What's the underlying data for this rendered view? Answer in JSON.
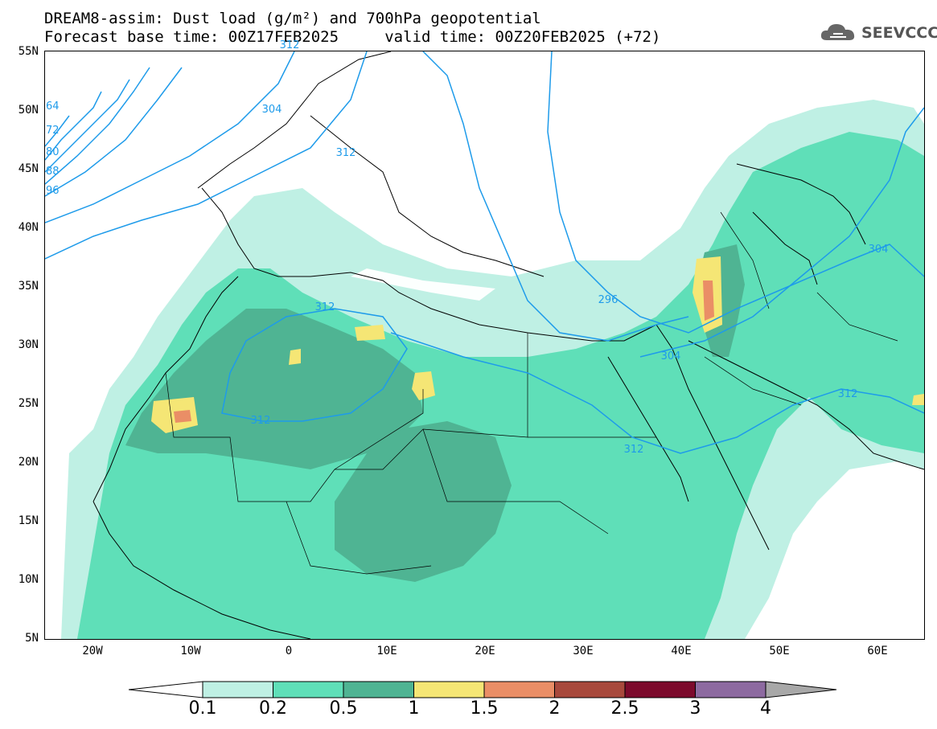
{
  "title": {
    "line1": "DREAM8-assim: Dust load (g/m²) and 700hPa geopotential",
    "line2": "Forecast base time: 00Z17FEB2025     valid time: 00Z20FEB2025 (+72)"
  },
  "logo": {
    "text": "SEEVCCC",
    "icon": "cloud-icon"
  },
  "axes": {
    "lat_labels": [
      "55N",
      "50N",
      "45N",
      "40N",
      "35N",
      "30N",
      "25N",
      "20N",
      "15N",
      "10N",
      "5N"
    ],
    "lon_labels": [
      "20W",
      "10W",
      "0",
      "10E",
      "20E",
      "30E",
      "40E",
      "50E",
      "60E"
    ],
    "lat_range": [
      5,
      55
    ],
    "lon_range": [
      -25,
      65
    ]
  },
  "contours": {
    "labels": [
      "304",
      "312",
      "312",
      "312",
      "312",
      "296",
      "304",
      "304",
      "312",
      "312"
    ],
    "left_edge_labels": [
      "64",
      "72",
      "80",
      "88",
      "96"
    ]
  },
  "legend": {
    "labels": [
      "0.1",
      "0.2",
      "0.5",
      "1",
      "1.5",
      "2",
      "2.5",
      "3",
      "4"
    ],
    "colors": [
      "#bff0e4",
      "#5fdfb8",
      "#4fb493",
      "#f5e675",
      "#ea8e66",
      "#a8493c",
      "#7c0a2c",
      "#8d6aa0",
      "#a8a8a8"
    ]
  }
}
